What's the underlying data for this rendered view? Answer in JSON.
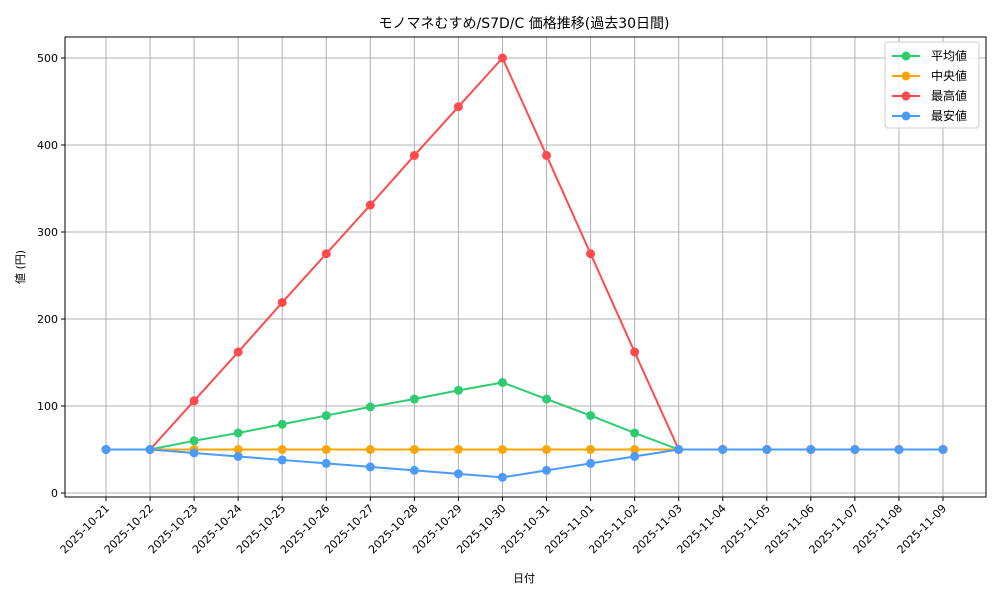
{
  "chart_data": {
    "type": "line",
    "title": "モノマネむすめ/S7D/C 価格推移(過去30日間)",
    "xlabel": "日付",
    "ylabel": "値 (円)",
    "ylim": [
      -6,
      524
    ],
    "yticks": [
      0,
      100,
      200,
      300,
      400,
      500
    ],
    "grid": true,
    "legend_position": "upper right",
    "categories": [
      "2025-10-21",
      "2025-10-22",
      "2025-10-23",
      "2025-10-24",
      "2025-10-25",
      "2025-10-26",
      "2025-10-27",
      "2025-10-28",
      "2025-10-29",
      "2025-10-30",
      "2025-10-31",
      "2025-11-01",
      "2025-11-02",
      "2025-11-03",
      "2025-11-04",
      "2025-11-05",
      "2025-11-06",
      "2025-11-07",
      "2025-11-08",
      "2025-11-09"
    ],
    "series": [
      {
        "name": "平均値",
        "color": "#2ecc71",
        "values": [
          50,
          50,
          60,
          69,
          79,
          89,
          99,
          108,
          118,
          127,
          108,
          89,
          69,
          50,
          50,
          50,
          50,
          50,
          50,
          50
        ]
      },
      {
        "name": "中央値",
        "color": "#ffa500",
        "values": [
          50,
          50,
          50,
          50,
          50,
          50,
          50,
          50,
          50,
          50,
          50,
          50,
          50,
          50,
          50,
          50,
          50,
          50,
          50,
          50
        ]
      },
      {
        "name": "最高値",
        "color": "#ff4b4b",
        "values": [
          50,
          50,
          106,
          162,
          219,
          275,
          331,
          388,
          444,
          500,
          388,
          275,
          162,
          50,
          50,
          50,
          50,
          50,
          50,
          50
        ]
      },
      {
        "name": "最安値",
        "color": "#4b9bff",
        "values": [
          50,
          50,
          46,
          42,
          38,
          34,
          30,
          26,
          22,
          18,
          26,
          34,
          42,
          50,
          50,
          50,
          50,
          50,
          50,
          50
        ]
      }
    ]
  }
}
